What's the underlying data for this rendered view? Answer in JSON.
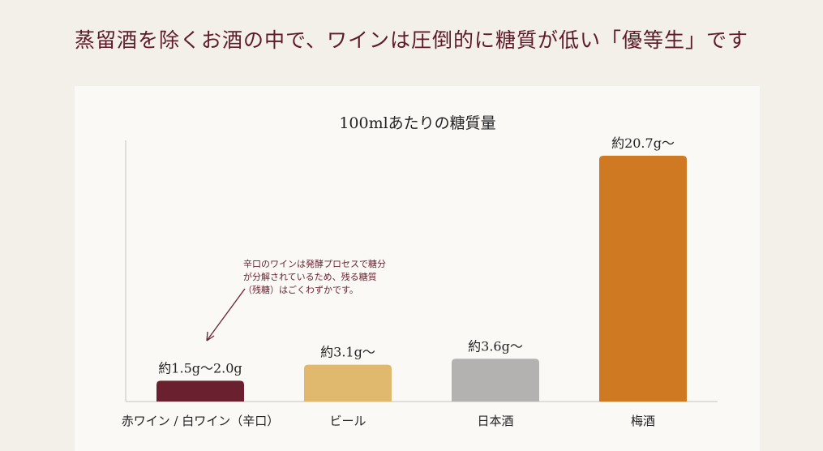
{
  "headline": "蒸留酒を除くお酒の中で、ワインは圧倒的に糖質が低い「優等生」です",
  "chart_data": {
    "type": "bar",
    "title": "100mlあたりの糖質量",
    "categories": [
      "赤ワイン / 白ワイン（辛口）",
      "ビール",
      "日本酒",
      "梅酒"
    ],
    "values": [
      1.75,
      3.1,
      3.6,
      20.7
    ],
    "data_labels": [
      "約1.5g〜2.0g",
      "約3.1g〜",
      "約3.6g〜",
      "約20.7g〜"
    ],
    "colors": [
      "#6b2030",
      "#e0b96e",
      "#b3b2b0",
      "#cf7a22"
    ],
    "ylim": [
      0,
      22
    ],
    "grid": false,
    "annotation": "辛口のワインは発酵プロセスで糖分\nが分解されているため、残る糖質\n（残糖）はごくわずかです。"
  }
}
